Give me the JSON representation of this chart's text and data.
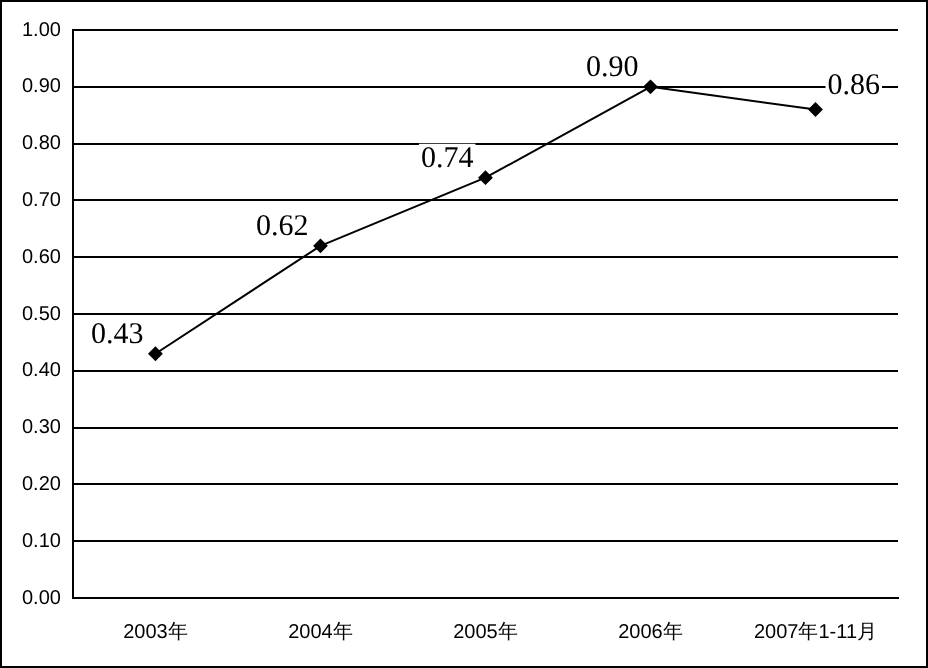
{
  "chart_data": {
    "type": "line",
    "categories": [
      "2003年",
      "2004年",
      "2005年",
      "2006年",
      "2007年1-11月"
    ],
    "series": [
      {
        "color": "#000000",
        "values": [
          0.43,
          0.62,
          0.74,
          0.9,
          0.86
        ],
        "value_labels": [
          "0.43",
          "0.62",
          "0.74",
          "0.90",
          "0.86"
        ]
      }
    ],
    "ylim": [
      0,
      1
    ],
    "yticks": [
      {
        "value": 0,
        "label": "0.00"
      },
      {
        "value": 0.1,
        "label": "0.10"
      },
      {
        "value": 0.2,
        "label": "0.20"
      },
      {
        "value": 0.3,
        "label": "0.30"
      },
      {
        "value": 0.4,
        "label": "0.40"
      },
      {
        "value": 0.5,
        "label": "0.50"
      },
      {
        "value": 0.6,
        "label": "0.60"
      },
      {
        "value": 0.7,
        "label": "0.70"
      },
      {
        "value": 0.8,
        "label": "0.80"
      },
      {
        "value": 0.9,
        "label": "0.90"
      },
      {
        "value": 1,
        "label": "1.00"
      }
    ],
    "grid": "y",
    "marker": "diamond",
    "line_style": "solid",
    "legend": false
  }
}
